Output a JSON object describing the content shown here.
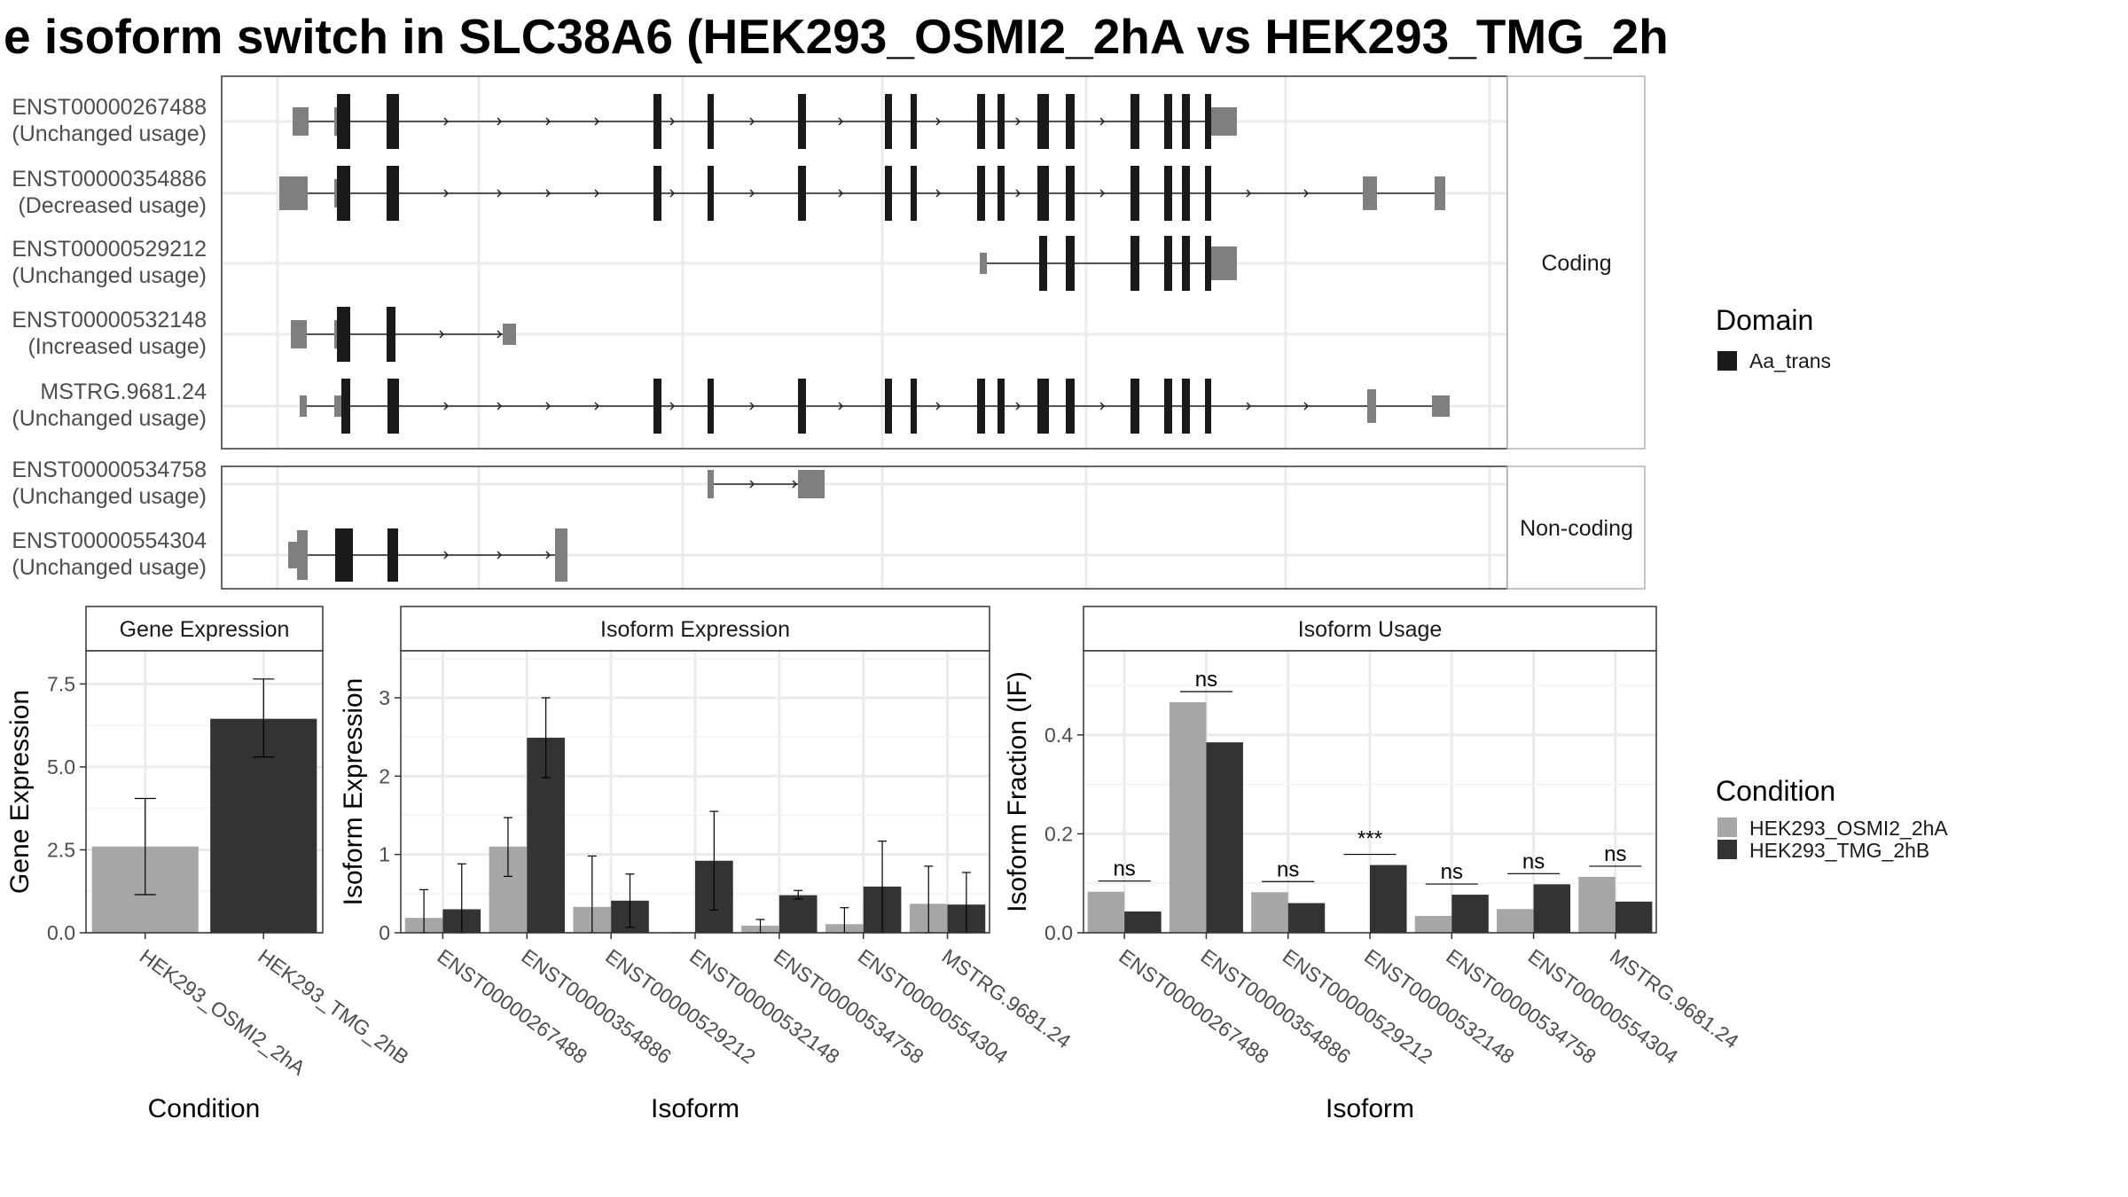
{
  "title": "e isoform switch in SLC38A6 (HEK293_OSMI2_2hA vs HEK293_TMG_2h",
  "colors": {
    "osmi": "#a6a6a6",
    "tmg": "#333333",
    "utr": "#7f7f7f",
    "cds": "#1a1a1a",
    "grid": "#ebebeb"
  },
  "chart_data": [
    {
      "type": "other",
      "kind": "transcript-structure",
      "panels": [
        {
          "label": "Coding",
          "transcripts": [
            {
              "id": "ENST00000267488",
              "usage": "(Unchanged usage)"
            },
            {
              "id": "ENST00000354886",
              "usage": "(Decreased usage)"
            },
            {
              "id": "ENST00000529212",
              "usage": "(Unchanged usage)"
            },
            {
              "id": "ENST00000532148",
              "usage": "(Increased usage)"
            },
            {
              "id": "MSTRG.9681.24",
              "usage": "(Unchanged usage)"
            }
          ]
        },
        {
          "label": "Non-coding",
          "transcripts": [
            {
              "id": "ENST00000534758",
              "usage": "(Unchanged usage)"
            },
            {
              "id": "ENST00000554304",
              "usage": "(Unchanged usage)"
            }
          ]
        }
      ],
      "legend": {
        "title": "Domain",
        "entries": [
          "Aa_trans"
        ]
      }
    },
    {
      "type": "bar",
      "title": "Gene Expression",
      "xlabel": "Condition",
      "ylabel": "Gene Expression",
      "categories": [
        "HEK293_OSMI2_2hA",
        "HEK293_TMG_2hB"
      ],
      "values": [
        2.6,
        6.45
      ],
      "error": [
        [
          1.15,
          4.05
        ],
        [
          5.3,
          7.65
        ]
      ],
      "ylim": [
        0,
        8.5
      ],
      "yticks": [
        "0.0",
        "2.5",
        "5.0",
        "7.5"
      ]
    },
    {
      "type": "bar",
      "title": "Isoform Expression",
      "xlabel": "Isoform",
      "ylabel": "Isoform Expression",
      "categories": [
        "ENST00000267488",
        "ENST00000354886",
        "ENST00000529212",
        "ENST00000532148",
        "ENST00000534758",
        "ENST00000554304",
        "MSTRG.9681.24"
      ],
      "series": [
        {
          "name": "HEK293_OSMI2_2hA",
          "values": [
            0.19,
            1.1,
            0.33,
            0.0,
            0.09,
            0.11,
            0.37
          ],
          "error": [
            [
              0,
              0.55
            ],
            [
              0.72,
              1.47
            ],
            [
              0,
              0.98
            ],
            [
              0,
              0
            ],
            [
              0,
              0.17
            ],
            [
              0,
              0.32
            ],
            [
              0,
              0.85
            ]
          ]
        },
        {
          "name": "HEK293_TMG_2hB",
          "values": [
            0.3,
            2.49,
            0.41,
            0.92,
            0.48,
            0.59,
            0.36
          ],
          "error": [
            [
              0,
              0.88
            ],
            [
              1.98,
              3.0
            ],
            [
              0.07,
              0.75
            ],
            [
              0.29,
              1.55
            ],
            [
              0.43,
              0.54
            ],
            [
              0,
              1.17
            ],
            [
              0,
              0.77
            ]
          ]
        }
      ],
      "ylim": [
        0,
        3.6
      ],
      "yticks": [
        "0",
        "1",
        "2",
        "3"
      ]
    },
    {
      "type": "bar",
      "title": "Isoform Usage",
      "xlabel": "Isoform",
      "ylabel": "Isoform Fraction (IF)",
      "categories": [
        "ENST00000267488",
        "ENST00000354886",
        "ENST00000529212",
        "ENST00000532148",
        "ENST00000534758",
        "ENST00000554304",
        "MSTRG.9681.24"
      ],
      "series": [
        {
          "name": "HEK293_OSMI2_2hA",
          "values": [
            0.083,
            0.466,
            0.082,
            0.0,
            0.034,
            0.048,
            0.113
          ]
        },
        {
          "name": "HEK293_TMG_2hB",
          "values": [
            0.043,
            0.385,
            0.06,
            0.137,
            0.077,
            0.098,
            0.063
          ]
        }
      ],
      "significance": [
        "ns",
        "ns",
        "ns",
        "***",
        "ns",
        "ns",
        "ns"
      ],
      "ylim": [
        0,
        0.57
      ],
      "yticks": [
        "0.0",
        "0.2",
        "0.4"
      ]
    }
  ],
  "condition_legend": {
    "title": "Condition",
    "entries": [
      "HEK293_OSMI2_2hA",
      "HEK293_TMG_2hB"
    ]
  }
}
